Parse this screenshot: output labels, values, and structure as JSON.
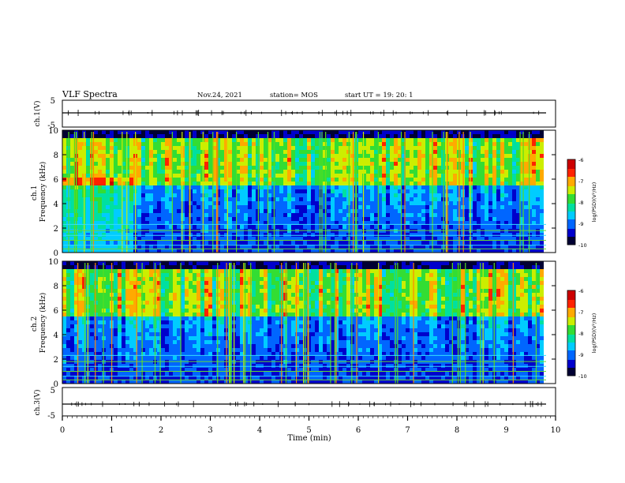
{
  "header": {
    "title": "VLF Spectra",
    "date": "Nov.24, 2021",
    "station": "station= MOS",
    "start": "start  UT =   19: 20: 1"
  },
  "colors": {
    "scale": [
      "#000033",
      "#0000cc",
      "#0066ff",
      "#00ccff",
      "#00e0a0",
      "#33dd33",
      "#ccee00",
      "#ffaa00",
      "#ff2200",
      "#cc0000"
    ],
    "frame": "#000000",
    "background": "#ffffff"
  },
  "chart_data": [
    {
      "type": "line",
      "name": "ch1-waveform",
      "ylabel": "ch.1(V)",
      "ylim": [
        -5,
        5
      ],
      "yticks": [
        "5",
        "-5"
      ],
      "x": [
        0,
        10
      ],
      "values": [
        0,
        0
      ]
    },
    {
      "type": "heatmap",
      "name": "ch1-spectrogram",
      "ylabel": "ch.1\nFrequency (kHz)",
      "ylim": [
        0,
        10
      ],
      "xlim": [
        0,
        10
      ],
      "yticks": [
        "0",
        "2",
        "4",
        "6",
        "8",
        "10"
      ],
      "colorbar": {
        "label": "log(PSD)(V²/Hz)",
        "range": [
          -10,
          -6
        ],
        "ticks": [
          "-6",
          "-7",
          "-8",
          "-9",
          "-10"
        ]
      }
    },
    {
      "type": "heatmap",
      "name": "ch2-spectrogram",
      "ylabel": "ch.2\nFrequency (kHz)",
      "ylim": [
        0,
        10
      ],
      "xlim": [
        0,
        10
      ],
      "yticks": [
        "0",
        "2",
        "4",
        "6",
        "8",
        "10"
      ],
      "colorbar": {
        "label": "log(PSD)(V²/Hz)",
        "range": [
          -10,
          -6
        ],
        "ticks": [
          "-6",
          "-7",
          "-8",
          "-9",
          "-10"
        ]
      }
    },
    {
      "type": "line",
      "name": "ch3-waveform",
      "ylabel": "ch.3(V)",
      "ylim": [
        -5,
        5
      ],
      "yticks": [
        "5",
        "-5"
      ],
      "x": [
        0,
        10
      ],
      "values": [
        0,
        0
      ]
    }
  ],
  "xaxis": {
    "label": "Time  (min)",
    "ticks": [
      "0",
      "1",
      "2",
      "3",
      "4",
      "5",
      "6",
      "7",
      "8",
      "9",
      "10"
    ]
  }
}
